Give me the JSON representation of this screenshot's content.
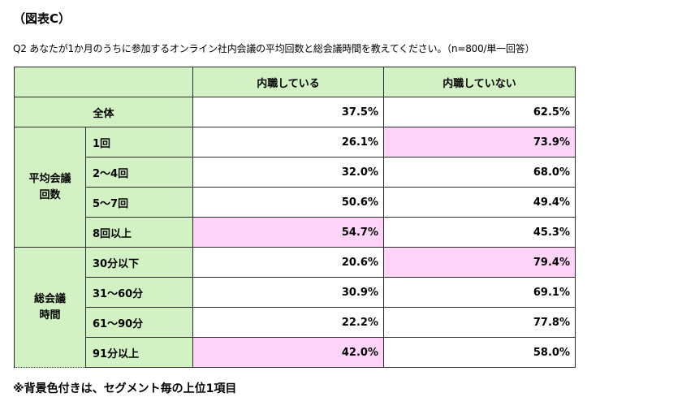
{
  "figure_label": "（図表C）",
  "question": "Q2 あなたが1か月のうちに参加するオンライン社内会議の平均回数と総会議時間を教えてください。（n=800/単一回答）",
  "table": {
    "columns": [
      "内職している",
      "内職していない"
    ],
    "total": {
      "label": "全体",
      "values": [
        "37.5%",
        "62.5%"
      ]
    },
    "groups": [
      {
        "label_line1": "平均会議",
        "label_line2": "回数",
        "rows": [
          {
            "label": "1回",
            "values": [
              "26.1%",
              "73.9%"
            ],
            "highlight": [
              false,
              true
            ]
          },
          {
            "label": "2〜4回",
            "values": [
              "32.0%",
              "68.0%"
            ],
            "highlight": [
              false,
              false
            ]
          },
          {
            "label": "5〜7回",
            "values": [
              "50.6%",
              "49.4%"
            ],
            "highlight": [
              false,
              false
            ]
          },
          {
            "label": "8回以上",
            "values": [
              "54.7%",
              "45.3%"
            ],
            "highlight": [
              true,
              false
            ]
          }
        ]
      },
      {
        "label_line1": "総会議",
        "label_line2": "時間",
        "rows": [
          {
            "label": "30分以下",
            "values": [
              "20.6%",
              "79.4%"
            ],
            "highlight": [
              false,
              true
            ]
          },
          {
            "label": "31〜60分",
            "values": [
              "30.9%",
              "69.1%"
            ],
            "highlight": [
              false,
              false
            ]
          },
          {
            "label": "61〜90分",
            "values": [
              "22.2%",
              "77.8%"
            ],
            "highlight": [
              false,
              false
            ]
          },
          {
            "label": "91分以上",
            "values": [
              "42.0%",
              "58.0%"
            ],
            "highlight": [
              true,
              false
            ]
          }
        ]
      }
    ]
  },
  "note": "※背景色付きは、セグメント毎の上位1項目",
  "colors": {
    "label_bg": "#d3f2c4",
    "highlight_bg": "#ffd4f9",
    "border": "#2b2b2b"
  }
}
